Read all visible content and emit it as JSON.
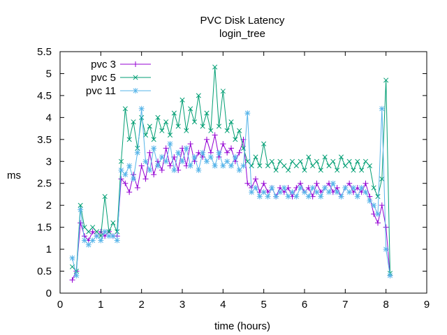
{
  "chart_data": {
    "type": "line",
    "title": "PVC Disk Latency",
    "subtitle": "login_tree",
    "xlabel": "time (hours)",
    "ylabel": "ms",
    "xlim": [
      0,
      9
    ],
    "ylim": [
      0,
      5.5
    ],
    "xticks": [
      "0",
      "1",
      "2",
      "3",
      "4",
      "5",
      "6",
      "7",
      "8",
      "9"
    ],
    "yticks": [
      "0",
      "0.5",
      "1",
      "1.5",
      "2",
      "2.5",
      "3",
      "3.5",
      "4",
      "4.5",
      "5",
      "5.5"
    ],
    "grid": false,
    "legend": "top-left",
    "x": [
      0.3,
      0.4,
      0.5,
      0.6,
      0.7,
      0.8,
      0.9,
      1.0,
      1.1,
      1.2,
      1.3,
      1.4,
      1.5,
      1.6,
      1.7,
      1.8,
      1.9,
      2.0,
      2.1,
      2.2,
      2.3,
      2.4,
      2.5,
      2.6,
      2.7,
      2.8,
      2.9,
      3.0,
      3.1,
      3.2,
      3.3,
      3.4,
      3.5,
      3.6,
      3.7,
      3.8,
      3.9,
      4.0,
      4.1,
      4.2,
      4.3,
      4.4,
      4.5,
      4.6,
      4.7,
      4.8,
      4.9,
      5.0,
      5.1,
      5.2,
      5.3,
      5.4,
      5.5,
      5.6,
      5.7,
      5.8,
      5.9,
      6.0,
      6.1,
      6.2,
      6.3,
      6.4,
      6.5,
      6.6,
      6.7,
      6.8,
      6.9,
      7.0,
      7.1,
      7.2,
      7.3,
      7.4,
      7.5,
      7.6,
      7.7,
      7.8,
      7.9,
      8.0,
      8.1
    ],
    "series": [
      {
        "name": "pvc 3",
        "color": "#9400d3",
        "marker": "plus",
        "values": [
          0.3,
          0.5,
          1.6,
          1.3,
          1.2,
          1.4,
          1.3,
          1.4,
          1.3,
          1.4,
          1.3,
          1.3,
          2.6,
          2.5,
          2.3,
          2.7,
          2.4,
          2.9,
          2.6,
          3.2,
          2.7,
          3.0,
          2.8,
          3.3,
          2.9,
          3.1,
          2.8,
          3.3,
          2.9,
          3.4,
          3.0,
          3.2,
          3.1,
          3.5,
          3.2,
          3.6,
          3.1,
          3.4,
          3.2,
          3.3,
          3.0,
          3.2,
          3.5,
          2.5,
          2.4,
          2.6,
          2.3,
          2.5,
          2.3,
          2.4,
          2.2,
          2.4,
          2.3,
          2.4,
          2.2,
          2.4,
          2.5,
          2.3,
          2.4,
          2.2,
          2.5,
          2.3,
          2.4,
          2.5,
          2.3,
          2.4,
          2.2,
          2.4,
          2.5,
          2.3,
          2.4,
          2.3,
          2.5,
          2.2,
          1.8,
          1.6,
          2.0,
          1.5,
          0.4
        ]
      },
      {
        "name": "pvc 5",
        "color": "#009e73",
        "marker": "cross",
        "values": [
          0.6,
          0.5,
          2.0,
          1.5,
          1.4,
          1.5,
          1.4,
          1.3,
          2.2,
          1.4,
          1.6,
          1.4,
          3.0,
          4.2,
          3.5,
          3.9,
          3.3,
          4.0,
          3.6,
          3.8,
          3.5,
          4.0,
          3.7,
          3.9,
          3.6,
          4.1,
          3.8,
          4.4,
          3.7,
          4.2,
          3.9,
          4.5,
          3.8,
          4.1,
          3.7,
          5.15,
          3.8,
          4.6,
          3.7,
          3.9,
          3.5,
          3.7,
          3.3,
          3.0,
          2.9,
          3.1,
          2.9,
          3.4,
          2.9,
          3.0,
          2.8,
          3.0,
          2.9,
          2.8,
          3.0,
          2.9,
          3.0,
          2.8,
          3.1,
          2.9,
          3.0,
          2.8,
          3.1,
          2.9,
          3.0,
          2.8,
          3.1,
          2.9,
          3.0,
          2.8,
          3.0,
          2.8,
          3.0,
          2.9,
          2.4,
          2.2,
          2.6,
          4.85,
          0.45
        ]
      },
      {
        "name": "pvc 11",
        "color": "#56b4e9",
        "marker": "star",
        "values": [
          0.8,
          0.4,
          1.9,
          1.2,
          1.1,
          1.2,
          1.3,
          1.2,
          1.4,
          1.3,
          1.3,
          1.2,
          2.8,
          2.7,
          2.9,
          2.6,
          3.2,
          4.2,
          3.0,
          2.8,
          3.3,
          2.9,
          3.1,
          3.0,
          3.4,
          2.8,
          3.2,
          3.0,
          3.3,
          2.9,
          3.1,
          2.8,
          3.2,
          3.0,
          3.1,
          2.9,
          3.2,
          2.9,
          3.0,
          2.9,
          3.1,
          2.8,
          2.9,
          4.1,
          2.3,
          2.4,
          2.2,
          2.3,
          2.2,
          2.4,
          2.2,
          2.3,
          2.4,
          2.2,
          2.3,
          2.2,
          2.4,
          2.3,
          2.2,
          2.4,
          2.3,
          2.2,
          2.4,
          2.3,
          2.5,
          2.3,
          2.2,
          2.4,
          2.3,
          2.4,
          2.2,
          2.4,
          2.3,
          2.1,
          2.0,
          1.8,
          4.2,
          1.0,
          0.4
        ]
      }
    ]
  }
}
